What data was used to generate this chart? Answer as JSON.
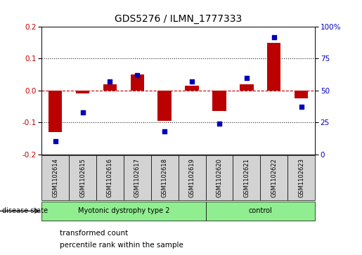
{
  "title": "GDS5276 / ILMN_1777333",
  "samples": [
    "GSM1102614",
    "GSM1102615",
    "GSM1102616",
    "GSM1102617",
    "GSM1102618",
    "GSM1102619",
    "GSM1102620",
    "GSM1102621",
    "GSM1102622",
    "GSM1102623"
  ],
  "red_values": [
    -0.13,
    -0.01,
    0.02,
    0.05,
    -0.095,
    0.015,
    -0.065,
    0.02,
    0.15,
    -0.025
  ],
  "blue_values": [
    10,
    33,
    57,
    62,
    18,
    57,
    24,
    60,
    92,
    37
  ],
  "group1_count": 6,
  "group2_count": 4,
  "group1_label": "Myotonic dystrophy type 2",
  "group2_label": "control",
  "group_color": "#90EE90",
  "disease_state_label": "disease state",
  "ylim_left": [
    -0.2,
    0.2
  ],
  "ylim_right": [
    0,
    100
  ],
  "yticks_left": [
    -0.2,
    -0.1,
    0.0,
    0.1,
    0.2
  ],
  "yticks_right": [
    0,
    25,
    50,
    75,
    100
  ],
  "yticklabels_right": [
    "0",
    "25",
    "50",
    "75",
    "100%"
  ],
  "red_color": "#BB0000",
  "blue_color": "#0000BB",
  "bar_bg_color": "#D3D3D3",
  "legend_items": [
    {
      "color": "#BB0000",
      "label": "transformed count"
    },
    {
      "color": "#0000BB",
      "label": "percentile rank within the sample"
    }
  ],
  "dotted_line_color": "#222222",
  "red_dashed_color": "#BB0000",
  "title_fontsize": 10,
  "tick_fontsize": 7.5,
  "sample_fontsize": 6,
  "legend_fontsize": 7.5
}
